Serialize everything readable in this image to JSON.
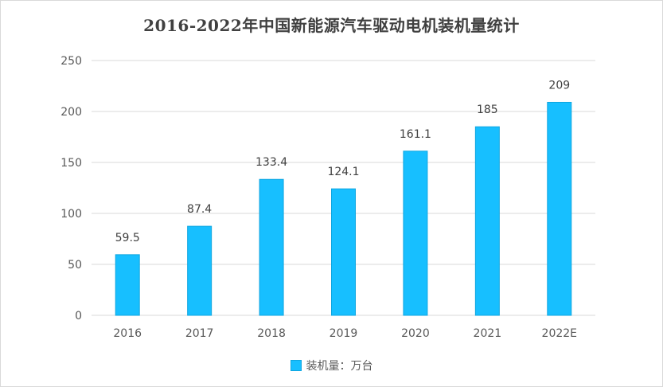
{
  "chart_data": {
    "type": "bar",
    "title": "2016-2022年中国新能源汽车驱动电机装机量统计",
    "categories": [
      "2016",
      "2017",
      "2018",
      "2019",
      "2020",
      "2021",
      "2022E"
    ],
    "series": [
      {
        "name": "装机量：万台",
        "values": [
          59.5,
          87.4,
          133.4,
          124.1,
          161.1,
          185,
          209
        ]
      }
    ],
    "data_labels": [
      "59.5",
      "87.4",
      "133.4",
      "124.1",
      "161.1",
      "185",
      "209"
    ],
    "ylim": [
      0,
      250
    ],
    "yticks": [
      0,
      50,
      100,
      150,
      200,
      250
    ],
    "grid": true,
    "legend": "bottom-center",
    "colors": {
      "bar": "#17BFFF",
      "bar_edge": "#0FA6E0",
      "grid": "#d9d9d9",
      "text": "#595959"
    }
  }
}
